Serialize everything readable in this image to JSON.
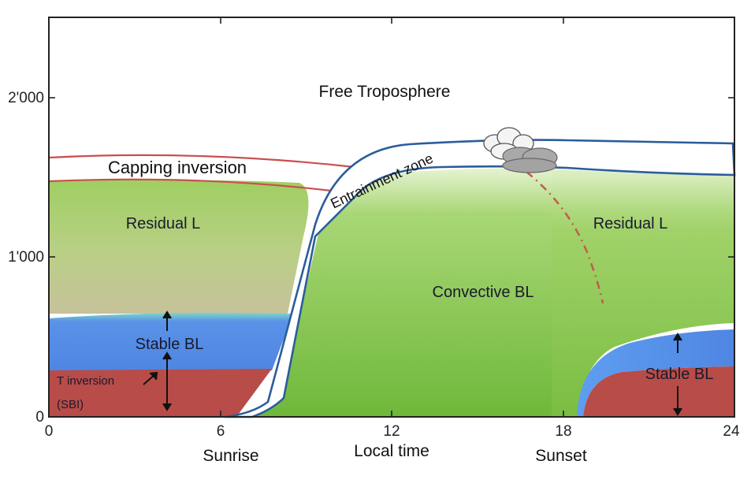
{
  "axes": {
    "y_ticks": [
      "0",
      "1'000",
      "2'000"
    ],
    "x_ticks": [
      "0",
      "6",
      "12",
      "18",
      "24"
    ],
    "x_label": "Local time",
    "x_markers": [
      "Sunrise",
      "Sunset"
    ]
  },
  "regions": {
    "free_troposphere": "Free Troposphere",
    "capping_inversion": "Capping inversion",
    "entrainment_zone": "Entrainment zone",
    "residual_left": "Residual L",
    "residual_right": "Residual L",
    "convective": "Convective BL",
    "stable_left": "Stable BL",
    "stable_right": "Stable BL",
    "t_inversion": "T inversion",
    "sbi": "(SBI)"
  },
  "colors": {
    "convective_green": "#7fc241",
    "residual_green": "#a9cf72",
    "stable_blue": "#5a8fe6",
    "inversion_red": "#b84c48",
    "boundary_blue": "#2a5d9c",
    "capping_red": "#c94f4f",
    "plume_dash": "#c0604a"
  }
}
